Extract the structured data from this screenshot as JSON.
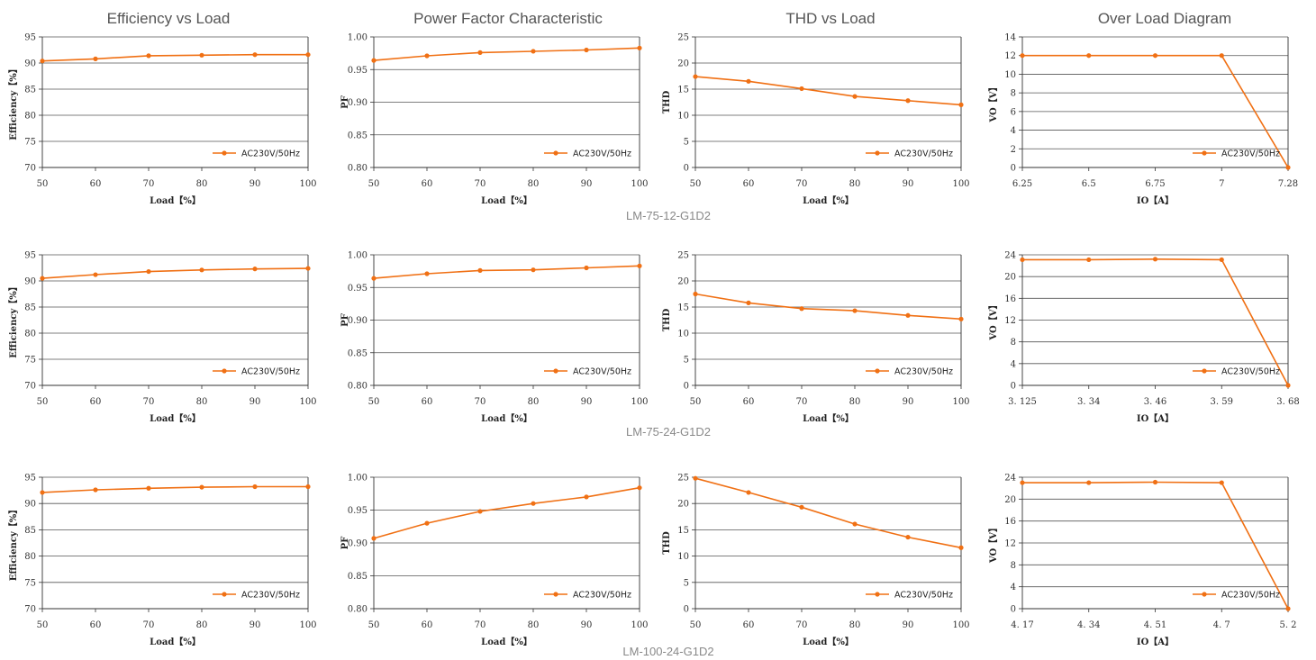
{
  "column_titles": [
    "Efficiency vs Load",
    "Power Factor Characteristic",
    "THD vs Load",
    "Over Load Diagram"
  ],
  "rows": [
    {
      "model": "LM-75-12-G1D2"
    },
    {
      "model": "LM-75-24-G1D2"
    },
    {
      "model": "LM-100-24-G1D2"
    }
  ],
  "series_color": "#f07014",
  "chart_data": [
    {
      "type": "line",
      "title": "Efficiency vs Load",
      "xlabel": "Load【%】",
      "ylabel": "Efficiency【%】",
      "x": [
        50,
        60,
        70,
        80,
        90,
        100
      ],
      "xlim": [
        50,
        100
      ],
      "ylim": [
        70,
        95
      ],
      "yticks": [
        "70",
        "75",
        "80",
        "85",
        "90",
        "95"
      ],
      "xticks": [
        "50",
        "60",
        "70",
        "80",
        "90",
        "100"
      ],
      "grid": "horizontal",
      "legend": "bottom-right",
      "series": [
        {
          "name": "AC230V/50Hz",
          "values": [
            90.4,
            90.8,
            91.4,
            91.5,
            91.6,
            91.6
          ]
        }
      ]
    },
    {
      "type": "line",
      "title": "Power Factor Characteristic",
      "xlabel": "Load【%】",
      "ylabel": "PF",
      "x": [
        50,
        60,
        70,
        80,
        90,
        100
      ],
      "xlim": [
        50,
        100
      ],
      "ylim": [
        0.8,
        1.0
      ],
      "yticks": [
        "0.80",
        "0.85",
        "0.90",
        "0.95",
        "1.00"
      ],
      "xticks": [
        "50",
        "60",
        "70",
        "80",
        "90",
        "100"
      ],
      "grid": "horizontal",
      "legend": "bottom-right",
      "series": [
        {
          "name": "AC230V/50Hz",
          "values": [
            0.964,
            0.971,
            0.976,
            0.978,
            0.98,
            0.983
          ]
        }
      ]
    },
    {
      "type": "line",
      "title": "THD vs Load",
      "xlabel": "Load【%】",
      "ylabel": "THD",
      "x": [
        50,
        60,
        70,
        80,
        90,
        100
      ],
      "xlim": [
        50,
        100
      ],
      "ylim": [
        0,
        25
      ],
      "yticks": [
        "0",
        "5",
        "10",
        "15",
        "20",
        "25"
      ],
      "xticks": [
        "50",
        "60",
        "70",
        "80",
        "90",
        "100"
      ],
      "grid": "horizontal",
      "legend": "bottom-right",
      "series": [
        {
          "name": "AC230V/50Hz",
          "values": [
            17.4,
            16.5,
            15.1,
            13.6,
            12.8,
            12.0
          ]
        }
      ]
    },
    {
      "type": "line",
      "title": "Over Load Diagram",
      "xlabel": "IO【A】",
      "ylabel": "VO【V】",
      "categories": [
        "6.25",
        "6.5",
        "6.75",
        "7",
        "7.28"
      ],
      "ylim": [
        0,
        14
      ],
      "yticks": [
        "0",
        "2",
        "4",
        "6",
        "8",
        "10",
        "12",
        "14"
      ],
      "grid": "horizontal",
      "legend": "bottom-right",
      "series": [
        {
          "name": "AC230V/50Hz",
          "values": [
            12,
            12,
            12,
            12,
            0
          ]
        }
      ]
    },
    {
      "type": "line",
      "title": "",
      "xlabel": "Load【%】",
      "ylabel": "Efficiency【%】",
      "x": [
        50,
        60,
        70,
        80,
        90,
        100
      ],
      "xlim": [
        50,
        100
      ],
      "ylim": [
        70,
        95
      ],
      "yticks": [
        "70",
        "75",
        "80",
        "85",
        "90",
        "95"
      ],
      "xticks": [
        "50",
        "60",
        "70",
        "80",
        "90",
        "100"
      ],
      "grid": "horizontal",
      "legend": "bottom-right",
      "series": [
        {
          "name": "AC230V/50Hz",
          "values": [
            90.5,
            91.2,
            91.8,
            92.1,
            92.3,
            92.4
          ]
        }
      ]
    },
    {
      "type": "line",
      "title": "",
      "xlabel": "Load【%】",
      "ylabel": "PF",
      "x": [
        50,
        60,
        70,
        80,
        90,
        100
      ],
      "xlim": [
        50,
        100
      ],
      "ylim": [
        0.8,
        1.0
      ],
      "yticks": [
        "0.80",
        "0.85",
        "0.90",
        "0.95",
        "1.00"
      ],
      "xticks": [
        "50",
        "60",
        "70",
        "80",
        "90",
        "100"
      ],
      "grid": "horizontal",
      "legend": "bottom-right",
      "series": [
        {
          "name": "AC230V/50Hz",
          "values": [
            0.964,
            0.971,
            0.976,
            0.977,
            0.98,
            0.983
          ]
        }
      ]
    },
    {
      "type": "line",
      "title": "",
      "xlabel": "Load【%】",
      "ylabel": "THD",
      "x": [
        50,
        60,
        70,
        80,
        90,
        100
      ],
      "xlim": [
        50,
        100
      ],
      "ylim": [
        0,
        25
      ],
      "yticks": [
        "0",
        "5",
        "10",
        "15",
        "20",
        "25"
      ],
      "xticks": [
        "50",
        "60",
        "70",
        "80",
        "90",
        "100"
      ],
      "grid": "horizontal",
      "legend": "bottom-right",
      "series": [
        {
          "name": "AC230V/50Hz",
          "values": [
            17.5,
            15.8,
            14.7,
            14.3,
            13.4,
            12.7
          ]
        }
      ]
    },
    {
      "type": "line",
      "title": "",
      "xlabel": "IO【A】",
      "ylabel": "VO【V】",
      "categories": [
        "3. 125",
        "3. 34",
        "3. 46",
        "3. 59",
        "3. 68"
      ],
      "ylim": [
        0,
        24
      ],
      "yticks": [
        "0",
        "4",
        "8",
        "12",
        "16",
        "20",
        "24"
      ],
      "grid": "horizontal",
      "legend": "bottom-right",
      "series": [
        {
          "name": "AC230V/50Hz",
          "values": [
            23.1,
            23.1,
            23.2,
            23.1,
            0
          ]
        }
      ]
    },
    {
      "type": "line",
      "title": "",
      "xlabel": "Load【%】",
      "ylabel": "Efficiency【%】",
      "x": [
        50,
        60,
        70,
        80,
        90,
        100
      ],
      "xlim": [
        50,
        100
      ],
      "ylim": [
        70,
        95
      ],
      "yticks": [
        "70",
        "75",
        "80",
        "85",
        "90",
        "95"
      ],
      "xticks": [
        "50",
        "60",
        "70",
        "80",
        "90",
        "100"
      ],
      "grid": "horizontal",
      "legend": "bottom-right",
      "series": [
        {
          "name": "AC230V/50Hz",
          "values": [
            92.1,
            92.6,
            92.9,
            93.1,
            93.2,
            93.2
          ]
        }
      ]
    },
    {
      "type": "line",
      "title": "",
      "xlabel": "Load【%】",
      "ylabel": "PF",
      "x": [
        50,
        60,
        70,
        80,
        90,
        100
      ],
      "xlim": [
        50,
        100
      ],
      "ylim": [
        0.8,
        1.0
      ],
      "yticks": [
        "0.80",
        "0.85",
        "0.90",
        "0.95",
        "1.00"
      ],
      "xticks": [
        "50",
        "60",
        "70",
        "80",
        "90",
        "100"
      ],
      "grid": "horizontal",
      "legend": "bottom-right",
      "series": [
        {
          "name": "AC230V/50Hz",
          "values": [
            0.907,
            0.93,
            0.948,
            0.96,
            0.97,
            0.984
          ]
        }
      ]
    },
    {
      "type": "line",
      "title": "",
      "xlabel": "Load【%】",
      "ylabel": "THD",
      "x": [
        50,
        60,
        70,
        80,
        90,
        100
      ],
      "xlim": [
        50,
        100
      ],
      "ylim": [
        0,
        25
      ],
      "yticks": [
        "0",
        "5",
        "10",
        "15",
        "20",
        "25"
      ],
      "xticks": [
        "50",
        "60",
        "70",
        "80",
        "90",
        "100"
      ],
      "grid": "horizontal",
      "legend": "bottom-right",
      "series": [
        {
          "name": "AC230V/50Hz",
          "values": [
            24.8,
            22.1,
            19.3,
            16.1,
            13.6,
            11.6
          ]
        }
      ]
    },
    {
      "type": "line",
      "title": "",
      "xlabel": "IO【A】",
      "ylabel": "VO【V】",
      "categories": [
        "4. 17",
        "4. 34",
        "4. 51",
        "4. 7",
        "5. 2"
      ],
      "ylim": [
        0,
        24
      ],
      "yticks": [
        "0",
        "4",
        "8",
        "12",
        "16",
        "20",
        "24"
      ],
      "grid": "horizontal",
      "legend": "bottom-right",
      "series": [
        {
          "name": "AC230V/50Hz",
          "values": [
            23.0,
            23.0,
            23.1,
            23.0,
            0
          ]
        }
      ]
    }
  ]
}
